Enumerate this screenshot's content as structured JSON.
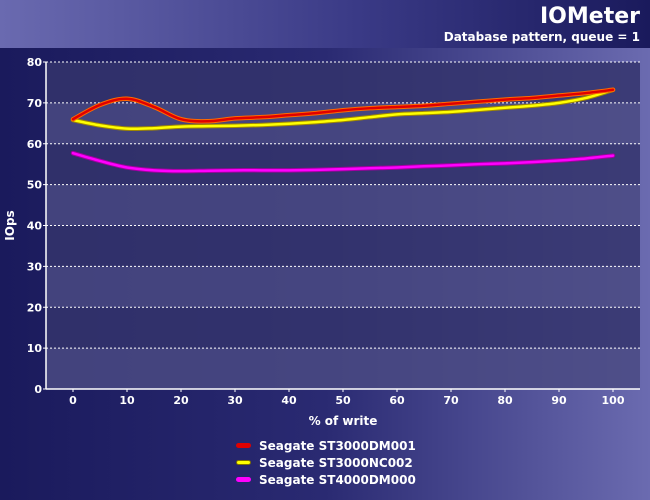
{
  "chart_data": {
    "type": "line",
    "title": "IOMeter",
    "subtitle": "Database pattern, queue = 1",
    "xlabel": "% of write",
    "ylabel": "IOps",
    "xlim": [
      0,
      100
    ],
    "ylim": [
      0,
      80
    ],
    "x_ticks": [
      "0",
      "10",
      "20",
      "30",
      "40",
      "50",
      "60",
      "70",
      "80",
      "90",
      "100"
    ],
    "y_ticks": [
      "0",
      "10",
      "20",
      "30",
      "40",
      "50",
      "60",
      "70",
      "80"
    ],
    "grid": true,
    "legend_position": "bottom",
    "series": [
      {
        "name": "Seagate ST3000DM001",
        "color": "#e00000",
        "outline": "#ff6a00",
        "x": [
          0,
          5,
          10,
          15,
          20,
          25,
          30,
          35,
          40,
          45,
          50,
          55,
          60,
          65,
          70,
          75,
          80,
          85,
          90,
          95,
          100
        ],
        "y": [
          66,
          69.5,
          71,
          69,
          66,
          65.5,
          66.2,
          66.5,
          67,
          67.5,
          68.2,
          68.7,
          69,
          69.3,
          69.8,
          70.3,
          70.8,
          71.2,
          71.8,
          72.4,
          73.2
        ]
      },
      {
        "name": "Seagate ST3000NC002",
        "color": "#ffff00",
        "outline": "#a08800",
        "x": [
          0,
          5,
          10,
          15,
          20,
          25,
          30,
          35,
          40,
          45,
          50,
          55,
          60,
          65,
          70,
          75,
          80,
          85,
          90,
          95,
          100
        ],
        "y": [
          65.8,
          64.5,
          63.7,
          63.8,
          64.2,
          64.3,
          64.4,
          64.6,
          64.9,
          65.3,
          65.8,
          66.5,
          67.2,
          67.5,
          67.8,
          68.3,
          68.8,
          69.3,
          70,
          71.2,
          73.2
        ]
      },
      {
        "name": "Seagate ST4000DM000",
        "color": "#ff00ff",
        "outline": "#a000a0",
        "x": [
          0,
          5,
          10,
          15,
          20,
          25,
          30,
          35,
          40,
          45,
          50,
          55,
          60,
          65,
          70,
          75,
          80,
          85,
          90,
          95,
          100
        ],
        "y": [
          57.7,
          55.8,
          54.2,
          53.5,
          53.3,
          53.4,
          53.5,
          53.5,
          53.5,
          53.6,
          53.8,
          54,
          54.2,
          54.5,
          54.7,
          55,
          55.2,
          55.5,
          55.9,
          56.4,
          57.1
        ]
      }
    ]
  }
}
